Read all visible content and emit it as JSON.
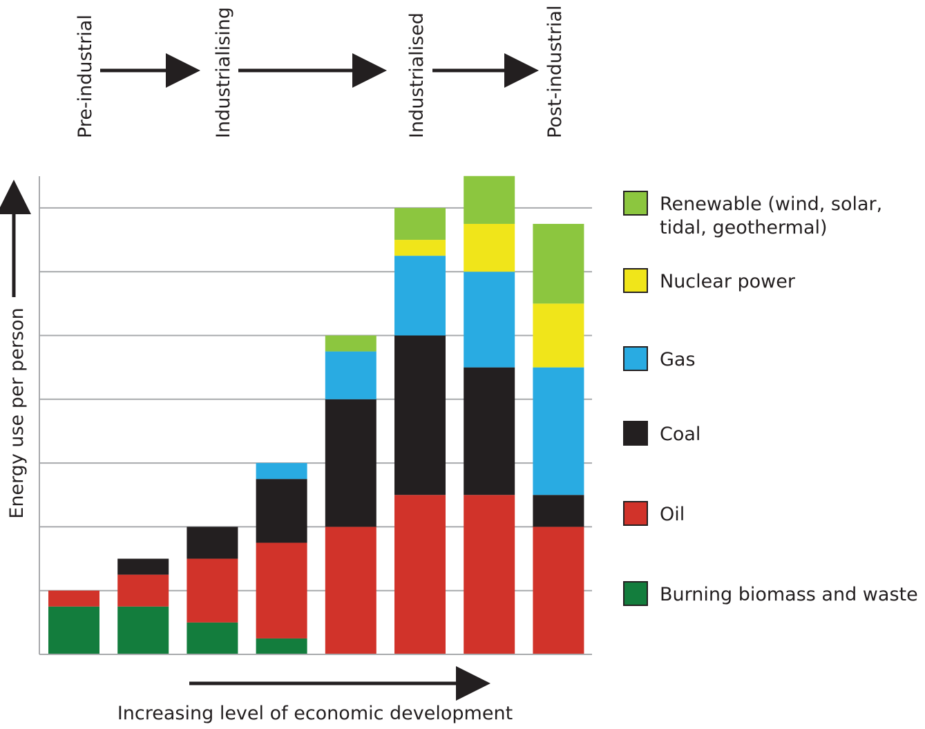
{
  "chart_data": {
    "type": "bar",
    "stacked": true,
    "categories": [
      "",
      "",
      "",
      "",
      "",
      "",
      "",
      ""
    ],
    "ylabel": "Energy use per person",
    "xlabel": "Increasing level of economic development",
    "ylim": [
      0,
      7.5
    ],
    "grid": true,
    "legend_position": "right",
    "stages": [
      "Pre-industrial",
      "Industrialising",
      "Industrialised",
      "Post-industrial"
    ],
    "series": [
      {
        "name": "Burning biomass and waste",
        "color": "#137d3d",
        "values": [
          0.75,
          0.75,
          0.5,
          0.25,
          0,
          0,
          0,
          0
        ]
      },
      {
        "name": "Oil",
        "color": "#d1332a",
        "values": [
          0.25,
          0.5,
          1.0,
          1.5,
          2.0,
          2.5,
          2.5,
          2.0
        ]
      },
      {
        "name": "Coal",
        "color": "#231f20",
        "values": [
          0,
          0.25,
          0.5,
          1.0,
          2.0,
          2.5,
          2.0,
          0.5
        ]
      },
      {
        "name": "Gas",
        "color": "#29abe2",
        "values": [
          0,
          0,
          0,
          0.25,
          0.75,
          1.25,
          1.5,
          2.0
        ]
      },
      {
        "name": "Nuclear power",
        "color": "#f0e51a",
        "values": [
          0,
          0,
          0,
          0,
          0,
          0.25,
          0.75,
          1.0
        ]
      },
      {
        "name": "Renewable (wind, solar, tidal, geothermal)",
        "color": "#8cc63f",
        "values": [
          0,
          0,
          0,
          0,
          0.25,
          0.5,
          0.75,
          1.25
        ]
      }
    ],
    "legend_lines": [
      [
        "Renewable (wind, solar,",
        "tidal, geothermal)"
      ],
      [
        "Nuclear power"
      ],
      [
        "Gas"
      ],
      [
        "Coal"
      ],
      [
        "Oil"
      ],
      [
        "Burning biomass and waste"
      ]
    ]
  }
}
